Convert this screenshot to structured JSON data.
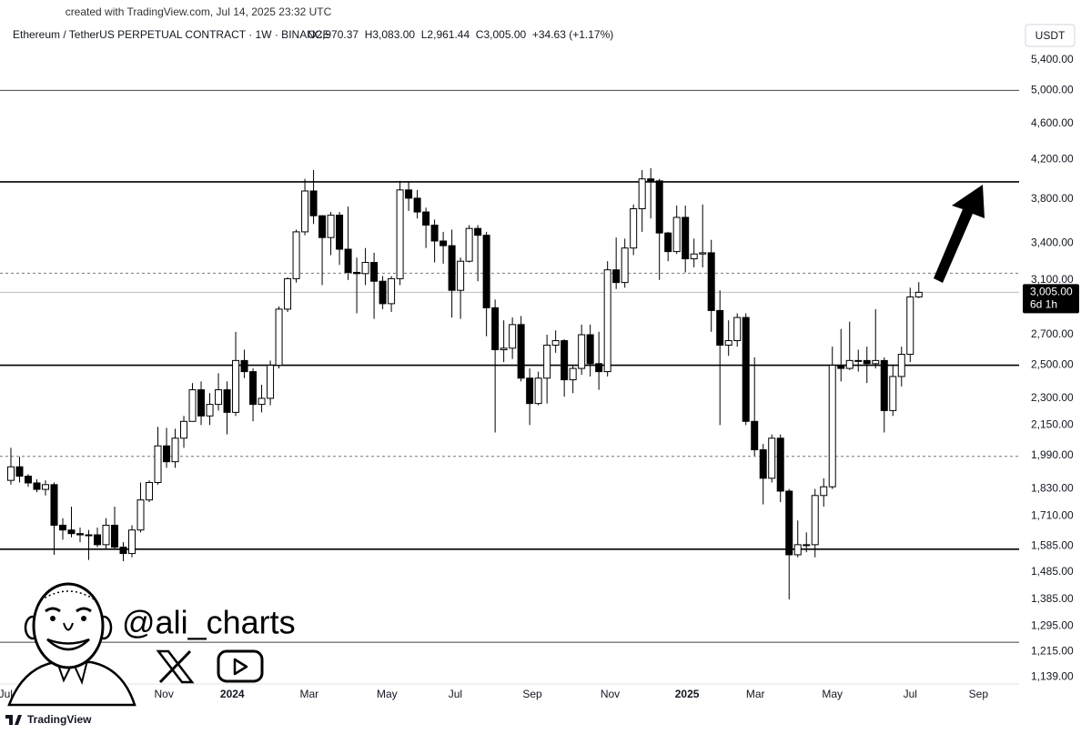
{
  "header": {
    "created": "created with TradingView.com, Jul 14, 2025 23:32 UTC",
    "brand": "TradingView",
    "handle": "@ali_charts"
  },
  "chart_data": {
    "type": "candlestick",
    "title": "Ethereum / TetherUS PERPETUAL CONTRACT · 1W · BINANCE",
    "ohlc_text": "O2,970.37  H3,083.00  L2,961.44  C3,005.00  +34.63 (+1.17%)",
    "currency": "USDT",
    "log_scale": true,
    "grid": false,
    "up_color": "#ffffff",
    "down_color": "#000000",
    "outline_color": "#000000",
    "open": [
      1870,
      1935,
      1890,
      1858,
      1828,
      1850,
      1670,
      1650,
      1635,
      1630,
      1630,
      1590,
      1670,
      1580,
      1555,
      1650,
      1780,
      1860,
      2040,
      1960,
      2080,
      2170,
      2350,
      2200,
      2265,
      2350,
      2220,
      2530,
      2460,
      2265,
      2300,
      2500,
      2880,
      3110,
      3500,
      3880,
      3645,
      3450,
      3650,
      3350,
      3160,
      3150,
      3240,
      3090,
      2920,
      3110,
      3890,
      3810,
      3680,
      3560,
      3420,
      3380,
      3020,
      3250,
      3530,
      3470,
      2890,
      2600,
      2610,
      2770,
      2420,
      2270,
      2420,
      2630,
      2660,
      2410,
      2480,
      2700,
      2510,
      2460,
      3180,
      3080,
      3360,
      3710,
      4000,
      3980,
      3490,
      3330,
      3630,
      3270,
      3310,
      3320,
      2870,
      2630,
      2660,
      2820,
      2170,
      2020,
      1880,
      2080,
      1820,
      1550,
      1590,
      1590,
      1800,
      1840,
      2500,
      2480,
      2530,
      2530,
      2510,
      2530,
      2230,
      2430,
      2570,
      2970.37
    ],
    "high": [
      2030,
      1985,
      1900,
      1875,
      1870,
      1860,
      1700,
      1750,
      1660,
      1650,
      1660,
      1700,
      1750,
      1600,
      1670,
      1860,
      1870,
      2140,
      2135,
      2130,
      2200,
      2390,
      2400,
      2330,
      2450,
      2400,
      2720,
      2600,
      2480,
      2380,
      2530,
      2900,
      3120,
      3520,
      4000,
      4090,
      3650,
      3680,
      3680,
      3730,
      3280,
      3360,
      3320,
      3130,
      3130,
      3980,
      3970,
      3890,
      3720,
      3610,
      3500,
      3520,
      3280,
      3560,
      3560,
      3500,
      2950,
      2800,
      2820,
      2830,
      2480,
      2460,
      2700,
      2730,
      2670,
      2500,
      2770,
      2770,
      2720,
      3250,
      3450,
      3440,
      3750,
      4090,
      4110,
      4000,
      3500,
      3740,
      3740,
      3440,
      3750,
      3430,
      3020,
      2800,
      2850,
      2850,
      2550,
      2050,
      2100,
      2100,
      1830,
      1690,
      1640,
      1830,
      1880,
      2620,
      2740,
      2790,
      2600,
      2620,
      2880,
      2550,
      2500,
      2620,
      3040,
      3083
    ],
    "low": [
      1850,
      1860,
      1840,
      1815,
      1800,
      1550,
      1610,
      1620,
      1600,
      1530,
      1580,
      1570,
      1570,
      1525,
      1540,
      1640,
      1770,
      1850,
      1930,
      1930,
      2030,
      2170,
      2150,
      2150,
      2230,
      2100,
      2200,
      2420,
      2170,
      2220,
      2260,
      2480,
      2860,
      3080,
      3470,
      3570,
      3060,
      3300,
      3220,
      3100,
      2850,
      3060,
      2810,
      2880,
      2860,
      3060,
      3690,
      3620,
      3360,
      3240,
      3230,
      2820,
      2810,
      3240,
      3090,
      2690,
      2110,
      2520,
      2540,
      2400,
      2150,
      2260,
      2270,
      2580,
      2310,
      2330,
      2440,
      2430,
      2350,
      2430,
      3030,
      3040,
      3300,
      3500,
      3620,
      3100,
      3250,
      3310,
      3160,
      3200,
      3200,
      2720,
      2150,
      2560,
      2620,
      2150,
      1990,
      1760,
      1860,
      1770,
      1385,
      1540,
      1560,
      1540,
      1750,
      1830,
      2400,
      2470,
      2460,
      2390,
      2480,
      2110,
      2200,
      2370,
      2520,
      2961.44
    ],
    "close": [
      1935,
      1890,
      1858,
      1828,
      1850,
      1670,
      1650,
      1635,
      1630,
      1630,
      1590,
      1670,
      1580,
      1555,
      1650,
      1780,
      1860,
      2040,
      1960,
      2080,
      2170,
      2350,
      2200,
      2265,
      2350,
      2220,
      2530,
      2460,
      2265,
      2300,
      2500,
      2880,
      3110,
      3500,
      3880,
      3645,
      3450,
      3650,
      3350,
      3160,
      3150,
      3240,
      3090,
      2920,
      3110,
      3890,
      3810,
      3680,
      3560,
      3420,
      3380,
      3020,
      3250,
      3530,
      3470,
      2890,
      2600,
      2610,
      2770,
      2420,
      2270,
      2420,
      2630,
      2660,
      2410,
      2480,
      2700,
      2510,
      2460,
      3180,
      3080,
      3360,
      3710,
      4000,
      3980,
      3490,
      3330,
      3630,
      3270,
      3310,
      3320,
      2870,
      2630,
      2660,
      2820,
      2170,
      2020,
      1880,
      2080,
      1820,
      1550,
      1590,
      1590,
      1800,
      1840,
      2500,
      2480,
      2530,
      2530,
      2510,
      2530,
      2230,
      2430,
      2570,
      2970.37,
      3005
    ],
    "last_price_label": "3,005.00",
    "countdown": "6d 1h",
    "xlim": [
      -1.26,
      116.6
    ],
    "xticks": [
      {
        "value": -0.6,
        "label": "Jul"
      },
      {
        "value": 8.7,
        "label": "Sep"
      },
      {
        "value": 17.7,
        "label": "Nov"
      },
      {
        "value": 25.6,
        "label": "2024"
      },
      {
        "value": 34.5,
        "label": "Mar"
      },
      {
        "value": 43.5,
        "label": "May"
      },
      {
        "value": 51.4,
        "label": "Jul"
      },
      {
        "value": 60.3,
        "label": "Sep"
      },
      {
        "value": 69.3,
        "label": "Nov"
      },
      {
        "value": 78.2,
        "label": "2025"
      },
      {
        "value": 86.1,
        "label": "Mar"
      },
      {
        "value": 95,
        "label": "May"
      },
      {
        "value": 104,
        "label": "Jul"
      },
      {
        "value": 111.9,
        "label": "Sep"
      }
    ],
    "ylim": [
      1119,
      5890
    ],
    "yticks": [
      {
        "value": 5400,
        "label": "5,400.00"
      },
      {
        "value": 5000,
        "label": "5,000.00"
      },
      {
        "value": 4600,
        "label": "4,600.00"
      },
      {
        "value": 4200,
        "label": "4,200.00"
      },
      {
        "value": 3800,
        "label": "3,800.00"
      },
      {
        "value": 3400,
        "label": "3,400.00"
      },
      {
        "value": 3100,
        "label": "3,100.00"
      },
      {
        "value": 2700,
        "label": "2,700.00"
      },
      {
        "value": 2500,
        "label": "2,500.00"
      },
      {
        "value": 2300,
        "label": "2,300.00"
      },
      {
        "value": 2150,
        "label": "2,150.00"
      },
      {
        "value": 1990,
        "label": "1,990.00"
      },
      {
        "value": 1830,
        "label": "1,830.00"
      },
      {
        "value": 1710,
        "label": "1,710.00"
      },
      {
        "value": 1585,
        "label": "1,585.00"
      },
      {
        "value": 1485,
        "label": "1,485.00"
      },
      {
        "value": 1385,
        "label": "1,385.00"
      },
      {
        "value": 1295,
        "label": "1,295.00"
      },
      {
        "value": 1215,
        "label": "1,215.00"
      },
      {
        "value": 1139,
        "label": "1,139.00"
      }
    ],
    "levels": [
      {
        "value": 5000,
        "style": "thin"
      },
      {
        "value": 3970,
        "style": "thick"
      },
      {
        "value": 3153,
        "style": "dashed"
      },
      {
        "value": 2500,
        "style": "thick"
      },
      {
        "value": 1987,
        "style": "dashed"
      },
      {
        "value": 1572,
        "style": "thick"
      },
      {
        "value": 1243,
        "style": "thin"
      }
    ]
  }
}
